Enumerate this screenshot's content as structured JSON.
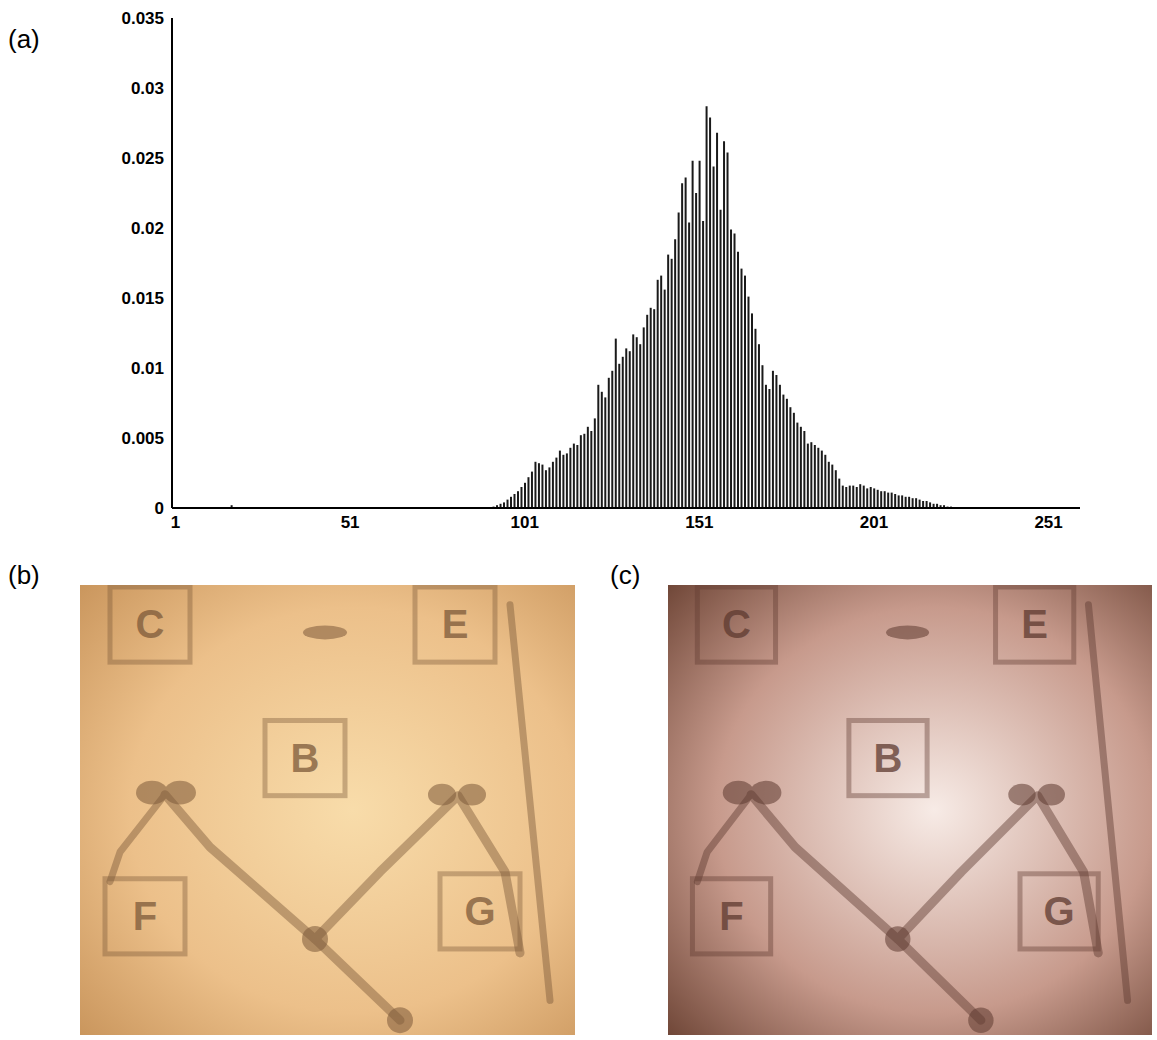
{
  "chart_data": {
    "type": "bar",
    "panel": "(a)",
    "color": "#1a1a1a",
    "grid": false,
    "x": [
      17,
      92,
      93,
      94,
      95,
      96,
      97,
      98,
      99,
      100,
      101,
      102,
      103,
      104,
      105,
      106,
      107,
      108,
      109,
      110,
      111,
      112,
      113,
      114,
      115,
      116,
      117,
      118,
      119,
      120,
      121,
      122,
      123,
      124,
      125,
      126,
      127,
      128,
      129,
      130,
      131,
      132,
      133,
      134,
      135,
      136,
      137,
      138,
      139,
      140,
      141,
      142,
      143,
      144,
      145,
      146,
      147,
      148,
      149,
      150,
      151,
      152,
      153,
      154,
      155,
      156,
      157,
      158,
      159,
      160,
      161,
      162,
      163,
      164,
      165,
      166,
      167,
      168,
      169,
      170,
      171,
      172,
      173,
      174,
      175,
      176,
      177,
      178,
      179,
      180,
      181,
      182,
      183,
      184,
      185,
      186,
      187,
      188,
      189,
      190,
      191,
      192,
      193,
      194,
      195,
      196,
      197,
      198,
      199,
      200,
      201,
      202,
      203,
      204,
      205,
      206,
      207,
      208,
      209,
      210,
      211,
      212,
      213,
      214,
      215,
      216,
      217,
      218,
      219,
      220,
      221,
      222,
      223
    ],
    "values": [
      0.0002,
      0.0001,
      0.0002,
      0.0003,
      0.0004,
      0.0006,
      0.0008,
      0.001,
      0.0012,
      0.0015,
      0.0018,
      0.0022,
      0.0026,
      0.0033,
      0.0032,
      0.0031,
      0.0027,
      0.0029,
      0.0033,
      0.0036,
      0.0041,
      0.0038,
      0.0039,
      0.0043,
      0.0046,
      0.0045,
      0.0052,
      0.0053,
      0.0058,
      0.0055,
      0.0064,
      0.0088,
      0.0083,
      0.0079,
      0.0093,
      0.0098,
      0.0121,
      0.0103,
      0.0108,
      0.0114,
      0.0112,
      0.0124,
      0.0122,
      0.0117,
      0.0129,
      0.0138,
      0.0143,
      0.0142,
      0.0163,
      0.0166,
      0.0156,
      0.0181,
      0.0178,
      0.0192,
      0.0211,
      0.0232,
      0.0236,
      0.0204,
      0.0248,
      0.0225,
      0.0248,
      0.0205,
      0.0287,
      0.0279,
      0.0244,
      0.0268,
      0.0213,
      0.0262,
      0.0254,
      0.0199,
      0.0196,
      0.0183,
      0.0171,
      0.0166,
      0.0151,
      0.0139,
      0.0128,
      0.0117,
      0.0102,
      0.0088,
      0.0085,
      0.0098,
      0.0095,
      0.0088,
      0.0081,
      0.0078,
      0.0072,
      0.0068,
      0.0061,
      0.0058,
      0.0055,
      0.0046,
      0.0047,
      0.0045,
      0.0043,
      0.0041,
      0.0038,
      0.0033,
      0.0031,
      0.0027,
      0.0021,
      0.0016,
      0.0015,
      0.0016,
      0.0016,
      0.0015,
      0.0017,
      0.0016,
      0.0014,
      0.0015,
      0.0014,
      0.0013,
      0.0012,
      0.0012,
      0.0011,
      0.0011,
      0.001,
      0.0009,
      0.0009,
      0.0008,
      0.0008,
      0.0007,
      0.0007,
      0.0006,
      0.0005,
      0.0005,
      0.0004,
      0.0003,
      0.0003,
      0.0002,
      0.0002,
      0.0001,
      0.0001
    ],
    "xlim": [
      0,
      260
    ],
    "xticks": [
      1,
      51,
      101,
      151,
      201,
      251
    ],
    "ylim": [
      0,
      0.035
    ],
    "yticks": [
      0,
      0.005,
      0.01,
      0.015,
      0.02,
      0.025,
      0.03,
      0.035
    ]
  },
  "images": [
    {
      "panel": "(b)",
      "labels": [
        "C",
        "E",
        "B",
        "F",
        "G"
      ]
    },
    {
      "panel": "(c)",
      "labels": [
        "C",
        "E",
        "B",
        "F",
        "G"
      ]
    }
  ]
}
